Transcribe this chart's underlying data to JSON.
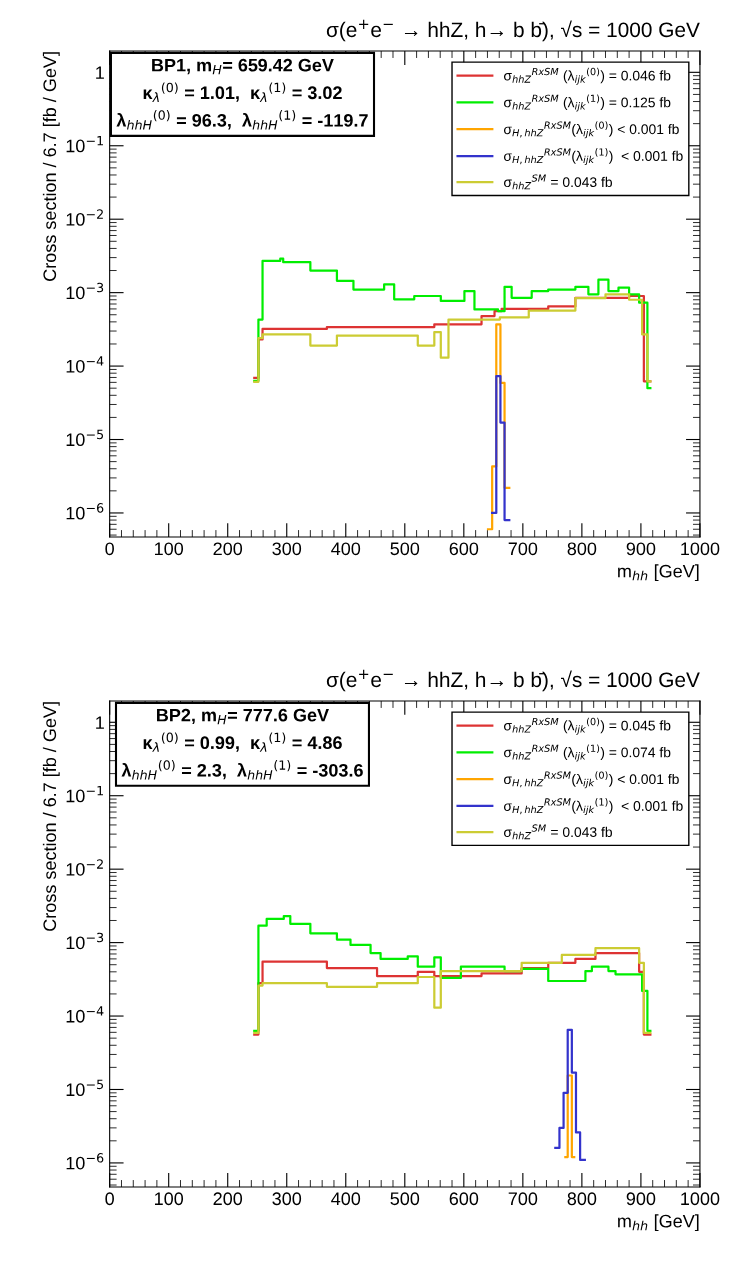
{
  "chart_data": [
    {
      "type": "step",
      "title": "σ(e$^{+}$e$^{−}$ → hhZ, h→ b b̄), √s = 1000 GeV",
      "xlabel": "m$_{hh}$ [GeV]",
      "ylabel": "Cross section / 6.7 [fb / GeV]",
      "annotations": [
        "BP1, m$_{H}$= 659.42 GeV",
        "κ$_{λ}$$^{(0)}$ = 1.01,  κ$_{λ}$$^{(1)}$ = 3.02",
        "λ$_{hhH}$$^{(0)}$ = 96.3,  λ$_{hhH}$$^{(1)}$ = -119.7"
      ],
      "log": "y",
      "xlim": [
        0,
        1000
      ],
      "xticks": [
        0,
        100,
        200,
        300,
        400,
        500,
        600,
        700,
        800,
        900,
        1000
      ],
      "ylim": [
        4.7e-07,
        1.95
      ],
      "yticks": [
        {
          "value": 1e-06,
          "label": "10$^{−6}$"
        },
        {
          "value": 1e-05,
          "label": "10$^{−5}$"
        },
        {
          "value": 0.0001,
          "label": "10$^{−4}$"
        },
        {
          "value": 0.001,
          "label": "10$^{−3}$"
        },
        {
          "value": 0.01,
          "label": "10$^{−2}$"
        },
        {
          "value": 0.1,
          "label": "10$^{−1}$"
        },
        1
      ],
      "legend": "top right",
      "grid": false,
      "series": [
        {
          "name": "σ$_{hhZ}$$^{RxSM}$ (λ$_{ijk}$$^{(0)}$) = 0.046 fb",
          "color": "#dd3333",
          "x": [
            245,
            252,
            259,
            368,
            550,
            630,
            652,
            664,
            743,
            789,
            880,
            905,
            916
          ],
          "values": [
            6.9e-05,
            0.00023,
            0.00032,
            0.00034,
            0.00037,
            0.00048,
            0.00056,
            0.0006,
            0.00065,
            0.00085,
            0.0009,
            6.2e-05,
            6.2e-05
          ]
        },
        {
          "name": "σ$_{hhZ}$$^{RxSM}$ (λ$_{ijk}$$^{(1)}$) = 0.125 fb",
          "color": "#00ee00",
          "x": [
            245,
            252,
            259,
            289,
            294,
            340,
            385,
            413,
            465,
            482,
            516,
            561,
            601,
            618,
            658,
            669,
            681,
            715,
            743,
            789,
            811,
            828,
            845,
            862,
            880,
            897,
            911,
            916
          ],
          "values": [
            6.3e-05,
            0.00043,
            0.0027,
            0.0029,
            0.0026,
            0.002,
            0.00145,
            0.0011,
            0.0013,
            0.00081,
            0.0009,
            0.00077,
            0.00105,
            0.00059,
            0.00056,
            0.0012,
            0.00085,
            0.00105,
            0.0011,
            0.0012,
            0.00095,
            0.0015,
            0.00105,
            0.00117,
            0.00095,
            0.00073,
            5e-05,
            5e-05
          ]
        },
        {
          "name": "σ$_{H,hhZ}$$^{RxSM}$(λ$_{ijk}$$^{(0)}$) < 0.001 fb",
          "color": "#ffa500",
          "x": [
            641,
            648,
            655,
            662,
            669,
            677
          ],
          "values": [
            6e-07,
            4.3e-06,
            0.00037,
            5.9e-05,
            2.2e-06,
            2.2e-06
          ]
        },
        {
          "name": "σ$_{H,hhZ}$$^{RxSM}$(λ$_{ijk}$$^{(1)}$)  < 0.001 fb",
          "color": "#3333cc",
          "x": [
            648,
            655,
            662,
            669,
            677
          ],
          "values": [
            1e-06,
            7.3e-05,
            1.7e-05,
            8e-07,
            8e-07
          ]
        },
        {
          "name": "σ$_{hhZ}$$^{SM}$ = 0.043 fb",
          "color": "#cccc33",
          "x": [
            245,
            252,
            259,
            340,
            385,
            522,
            550,
            561,
            574,
            661,
            710,
            789,
            840,
            880,
            902,
            911,
            916
          ],
          "values": [
            6.1e-05,
            0.00024,
            0.00027,
            0.00019,
            0.00026,
            0.00019,
            0.00029,
            0.00013,
            0.00043,
            0.00046,
            0.00057,
            0.00084,
            0.00095,
            0.0008,
            0.00027,
            6.2e-05,
            6.2e-05
          ]
        }
      ]
    },
    {
      "type": "step",
      "title": "σ(e$^{+}$e$^{−}$ → hhZ, h→ b b̄), √s = 1000 GeV",
      "xlabel": "m$_{hh}$ [GeV]",
      "ylabel": "Cross section / 6.7 [fb / GeV]",
      "annotations": [
        "BP2, m$_{H}$= 777.6 GeV",
        "κ$_{λ}$$^{(0)}$ = 0.99,  κ$_{λ}$$^{(1)}$ = 4.86",
        "λ$_{hhH}$$^{(0)}$ = 2.3,  λ$_{hhH}$$^{(1)}$ = -303.6"
      ],
      "log": "y",
      "xlim": [
        0,
        1000
      ],
      "xticks": [
        0,
        100,
        200,
        300,
        400,
        500,
        600,
        700,
        800,
        900,
        1000
      ],
      "ylim": [
        4.7e-07,
        1.95
      ],
      "yticks": [
        {
          "value": 1e-06,
          "label": "10$^{−6}$"
        },
        {
          "value": 1e-05,
          "label": "10$^{−5}$"
        },
        {
          "value": 0.0001,
          "label": "10$^{−4}$"
        },
        {
          "value": 0.001,
          "label": "10$^{−3}$"
        },
        {
          "value": 0.01,
          "label": "10$^{−2}$"
        },
        {
          "value": 0.1,
          "label": "10$^{−1}$"
        },
        1
      ],
      "legend": "top right",
      "grid": false,
      "series": [
        {
          "name": "σ$_{hhZ}$$^{RxSM}$ (λ$_{ijk}$$^{(0)}$) = 0.045 fb",
          "color": "#dd3333",
          "x": [
            245,
            252,
            259,
            368,
            453,
            522,
            550,
            630,
            698,
            743,
            789,
            823,
            897,
            905,
            916
          ],
          "values": [
            5.6e-05,
            0.00028,
            0.00055,
            0.00045,
            0.00035,
            0.0004,
            0.00035,
            0.00038,
            0.00045,
            0.00053,
            0.0006,
            0.00072,
            0.0004,
            5.6e-05,
            5.6e-05
          ]
        },
        {
          "name": "σ$_{hhZ}$$^{RxSM}$ (λ$_{ijk}$$^{(1)}$) = 0.074 fb",
          "color": "#00ee00",
          "x": [
            245,
            252,
            266,
            295,
            306,
            340,
            385,
            408,
            442,
            459,
            505,
            522,
            550,
            561,
            595,
            669,
            698,
            743,
            777,
            806,
            817,
            845,
            857,
            902,
            911,
            916
          ],
          "values": [
            6.3e-05,
            0.0017,
            0.0021,
            0.0023,
            0.0018,
            0.00134,
            0.0011,
            0.00093,
            0.00072,
            0.0006,
            0.00065,
            0.00047,
            0.00063,
            0.00033,
            0.00047,
            0.00041,
            0.00044,
            0.0003,
            0.0003,
            0.00041,
            0.00047,
            0.00041,
            0.00037,
            0.00022,
            6.3e-05,
            6.3e-05
          ]
        },
        {
          "name": "σ$_{H,hhZ}$$^{RxSM}$(λ$_{ijk}$$^{(0)}$) < 0.001 fb",
          "color": "#ffa500",
          "x": [
            772,
            776,
            783,
            787
          ],
          "values": [
            1.2e-06,
            1.55e-05,
            1.2e-06,
            1.2e-06
          ]
        },
        {
          "name": "σ$_{H,hhZ}$$^{RxSM}$(λ$_{ijk}$$^{(1)}$)  < 0.001 fb",
          "color": "#3333cc",
          "x": [
            755,
            762,
            769,
            776,
            783,
            790,
            797,
            805
          ],
          "values": [
            1.6e-06,
            3e-06,
            9e-06,
            6.5e-05,
            1.7e-05,
            2.6e-06,
            1.1e-06,
            1.1e-06
          ]
        },
        {
          "name": "σ$_{hhZ}$$^{SM}$ = 0.043 fb",
          "color": "#cccc33",
          "x": [
            245,
            252,
            259,
            368,
            453,
            522,
            550,
            561,
            698,
            766,
            823,
            897,
            905,
            916
          ],
          "values": [
            5.9e-05,
            0.00026,
            0.00028,
            0.00025,
            0.00028,
            0.00034,
            0.00013,
            0.00041,
            0.00053,
            0.00068,
            0.00084,
            0.00053,
            5.9e-05,
            5.9e-05
          ]
        }
      ]
    }
  ]
}
